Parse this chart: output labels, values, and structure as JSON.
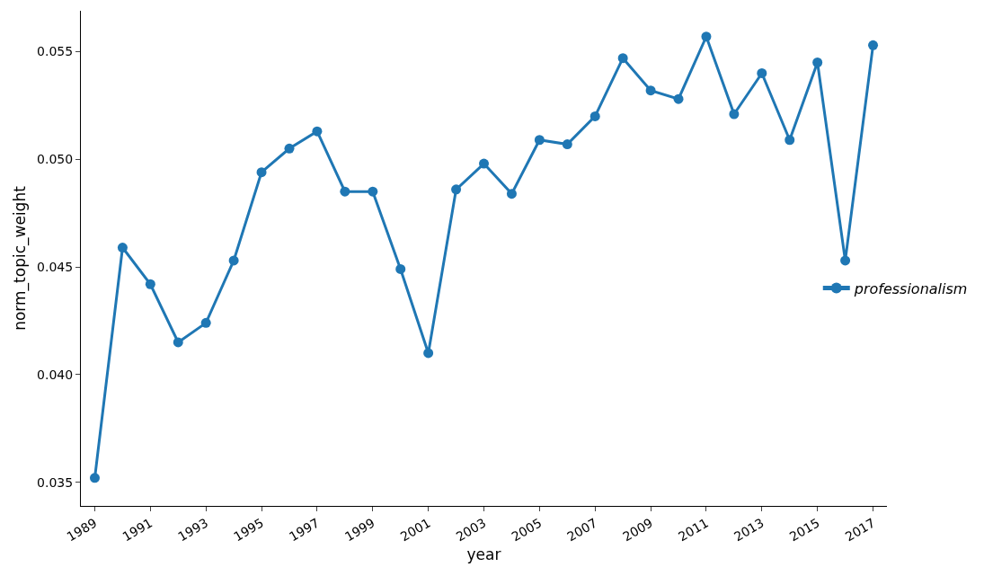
{
  "chart_data": {
    "type": "line",
    "xlabel": "year",
    "ylabel": "norm_topic_weight",
    "x": [
      1989,
      1990,
      1991,
      1992,
      1993,
      1994,
      1995,
      1996,
      1997,
      1998,
      1999,
      2000,
      2001,
      2002,
      2003,
      2004,
      2005,
      2006,
      2007,
      2008,
      2009,
      2010,
      2011,
      2012,
      2013,
      2014,
      2015,
      2016,
      2017
    ],
    "series": [
      {
        "name": "professionalism",
        "color": "#1f77b4",
        "values": [
          0.0352,
          0.0459,
          0.0442,
          0.0415,
          0.0424,
          0.0453,
          0.0494,
          0.0505,
          0.0513,
          0.0485,
          0.0485,
          0.0449,
          0.041,
          0.0486,
          0.0498,
          0.0484,
          0.0509,
          0.0507,
          0.052,
          0.0547,
          0.0532,
          0.0528,
          0.0557,
          0.0521,
          0.054,
          0.0509,
          0.0545,
          0.0453,
          0.0553
        ]
      }
    ],
    "xlim": [
      1988.5,
      2017.5
    ],
    "xticks": [
      1989,
      1991,
      1993,
      1995,
      1997,
      1999,
      2001,
      2003,
      2005,
      2007,
      2009,
      2011,
      2013,
      2015,
      2017
    ],
    "ylim": [
      0.0339,
      0.0569
    ],
    "yticks": [
      {
        "value": 0.035,
        "label": "0.035"
      },
      {
        "value": 0.04,
        "label": "0.040"
      },
      {
        "value": 0.045,
        "label": "0.045"
      },
      {
        "value": 0.05,
        "label": "0.050"
      },
      {
        "value": 0.055,
        "label": "0.055"
      }
    ],
    "legend": "right",
    "marker": "circle",
    "line_style": "solid"
  }
}
